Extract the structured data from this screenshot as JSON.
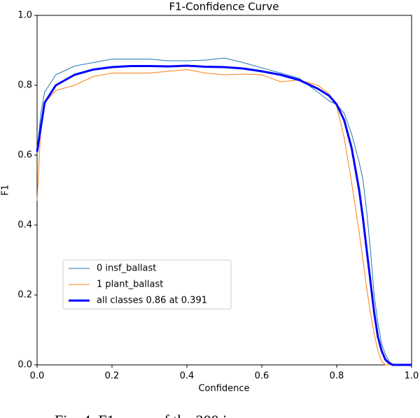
{
  "chart_data": {
    "type": "line",
    "title": "F1-Confidence Curve",
    "xlabel": "Confidence",
    "ylabel": "F1",
    "x": [
      0,
      0.01,
      0.02,
      0.05,
      0.1,
      0.15,
      0.2,
      0.25,
      0.3,
      0.35,
      0.4,
      0.45,
      0.5,
      0.55,
      0.6,
      0.65,
      0.7,
      0.75,
      0.78,
      0.8,
      0.82,
      0.84,
      0.86,
      0.87,
      0.88,
      0.89,
      0.9,
      0.91,
      0.92,
      0.93,
      0.94,
      0.95,
      0.97,
      1.0
    ],
    "series": [
      {
        "name": "0 insf_ballast",
        "color": "#1f77b4",
        "width": 1,
        "values": [
          0.61,
          0.72,
          0.78,
          0.83,
          0.855,
          0.865,
          0.875,
          0.875,
          0.875,
          0.87,
          0.87,
          0.872,
          0.878,
          0.865,
          0.85,
          0.835,
          0.82,
          0.78,
          0.755,
          0.745,
          0.72,
          0.66,
          0.58,
          0.53,
          0.44,
          0.33,
          0.2,
          0.12,
          0.06,
          0.03,
          0.01,
          0,
          0,
          0
        ]
      },
      {
        "name": "1 plant_ballast",
        "color": "#ff7f0e",
        "width": 1,
        "values": [
          0.47,
          0.68,
          0.75,
          0.785,
          0.8,
          0.825,
          0.835,
          0.835,
          0.835,
          0.84,
          0.845,
          0.835,
          0.83,
          0.832,
          0.83,
          0.81,
          0.815,
          0.8,
          0.775,
          0.74,
          0.65,
          0.52,
          0.38,
          0.3,
          0.22,
          0.15,
          0.09,
          0.04,
          0.01,
          0,
          0,
          0,
          0,
          0
        ]
      },
      {
        "name": "all classes 0.86 at 0.391",
        "color": "#0000ff",
        "width": 3,
        "values": [
          0.61,
          0.68,
          0.75,
          0.8,
          0.83,
          0.845,
          0.852,
          0.855,
          0.855,
          0.854,
          0.856,
          0.853,
          0.852,
          0.848,
          0.84,
          0.83,
          0.815,
          0.79,
          0.77,
          0.745,
          0.7,
          0.62,
          0.5,
          0.42,
          0.33,
          0.24,
          0.15,
          0.08,
          0.04,
          0.015,
          0.005,
          0,
          0,
          0
        ]
      }
    ],
    "xlim": [
      0,
      1
    ],
    "ylim": [
      0,
      1
    ],
    "xticks": [
      {
        "value": 0,
        "label": "0.0"
      },
      0.2,
      0.4,
      0.6,
      0.8,
      {
        "value": 1,
        "label": "1.0"
      }
    ],
    "yticks": [
      {
        "value": 0,
        "label": "0.0"
      },
      0.2,
      0.4,
      0.6,
      0.8,
      {
        "value": 1,
        "label": "1.0"
      }
    ],
    "grid": false,
    "legend": "lower left"
  },
  "caption": "Fig. 4. F1 curve of the 200 i"
}
